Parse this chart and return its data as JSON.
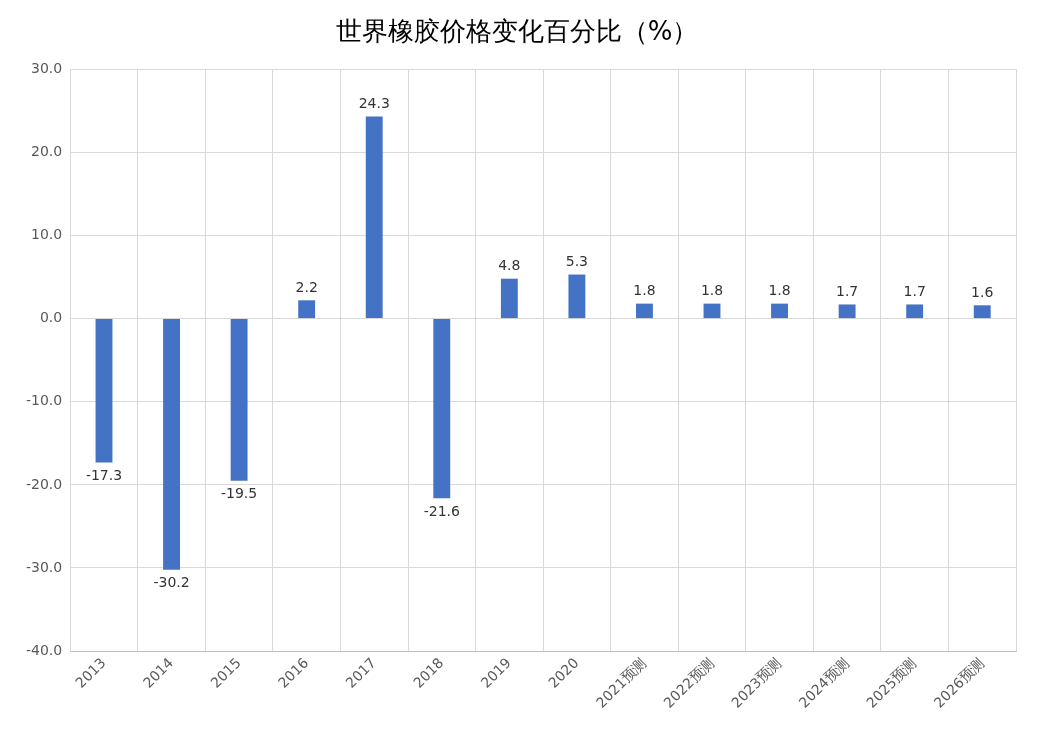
{
  "chart_data": {
    "type": "bar",
    "title": "世界橡胶价格变化百分比（%）",
    "categories": [
      "2013",
      "2014",
      "2015",
      "2016",
      "2017",
      "2018",
      "2019",
      "2020",
      "2021预测",
      "2022预测",
      "2023预测",
      "2024预测",
      "2025预测",
      "2026预测"
    ],
    "values": [
      -17.3,
      -30.2,
      -19.5,
      2.2,
      24.3,
      -21.6,
      4.8,
      5.3,
      1.8,
      1.8,
      1.8,
      1.7,
      1.7,
      1.6
    ],
    "color": "#4472c4",
    "ylim": [
      -40,
      30
    ],
    "yticks": [
      {
        "value": -40,
        "label": "-40.0"
      },
      {
        "value": -30,
        "label": "-30.0"
      },
      {
        "value": -20,
        "label": "-20.0"
      },
      {
        "value": -10,
        "label": "-10.0"
      },
      {
        "value": 0,
        "label": "0.0"
      },
      {
        "value": 10,
        "label": "10.0"
      },
      {
        "value": 20,
        "label": "20.0"
      },
      {
        "value": 30,
        "label": "30.0"
      }
    ],
    "grid": true,
    "data_labels": true,
    "legend": false
  }
}
